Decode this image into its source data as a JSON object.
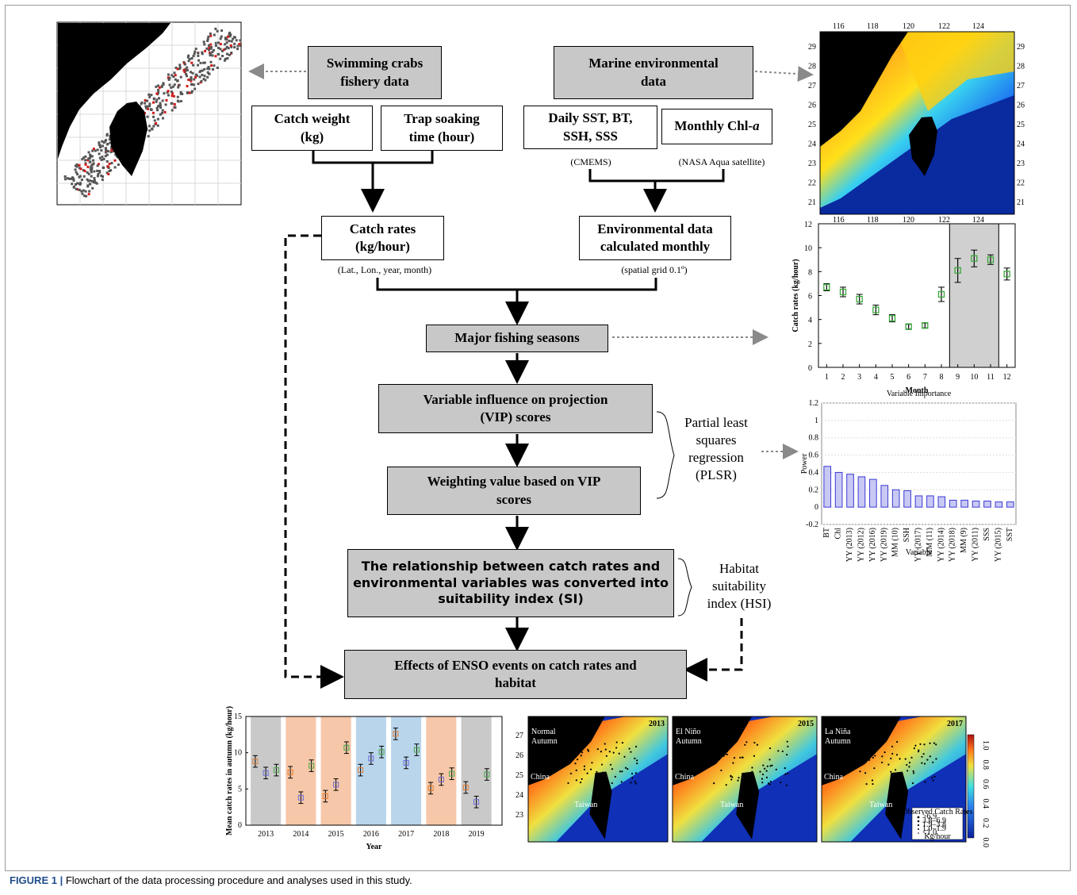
{
  "flow": {
    "fishery": "Swimming crabs\nfishery data",
    "marine": "Marine environmental\ndata",
    "catch_weight": "Catch weight\n(kg)",
    "trap_time": "Trap soaking\ntime (hour)",
    "daily": "Daily SST, BT,\nSSH, SSS",
    "monthly_chl": "Monthly Chl-",
    "monthly_chl_a": "a",
    "cmems": "(CMEMS)",
    "nasa": "(NASA Aqua satellite)",
    "catch_rates": "Catch rates\n(kg/hour)",
    "catch_rates_note": "(Lat., Lon., year, month)",
    "env_monthly": "Environmental data\ncalculated monthly",
    "env_note": "(spatial grid 0.1º)",
    "major_seasons": "Major fishing seasons",
    "vip": "Variable influence on projection\n(VIP) scores",
    "weighting": "Weighting value based on VIP\nscores",
    "plsr": "Partial least\nsquares\nregression\n(PLSR)",
    "relationship": "The relationship between catch rates and\nenvironmental variables was converted into\nsuitability index (SI)",
    "hsi": "Habitat\nsuitability\nindex (HSI)",
    "enso": "Effects of ENSO events on catch rates and\nhabitat"
  },
  "caption": {
    "label": "FIGURE 1 |",
    "text": " Flowchart of the data processing procedure and analyses used in this study."
  },
  "sst_map": {
    "top_ticks": [
      "116",
      "118",
      "120",
      "122",
      "124"
    ],
    "side_ticks": [
      "29",
      "28",
      "27",
      "26",
      "25",
      "24",
      "23",
      "22",
      "21"
    ]
  },
  "hsi_maps": [
    {
      "year": "2013",
      "label": "Normal\nAutumn"
    },
    {
      "year": "2015",
      "label": "El Niño\nAutumn"
    },
    {
      "year": "2017",
      "label": "La Niña\nAutumn"
    }
  ],
  "map_labels": {
    "china": "China",
    "taiwan": "Taiwan"
  },
  "colorbar_ticks": [
    "1.0",
    "0.8",
    "0.6",
    "0.4",
    "0.2",
    "0.0"
  ],
  "legend": {
    "title": "Observed Catch Rates",
    "items": [
      ">6.9",
      "3.8–6.9",
      "1.9–3.8",
      "1.0–1.9",
      "<1.0"
    ],
    "unit": "Kg/hour"
  },
  "colors": {
    "highlight_gray": "#d0d0d0",
    "el_nino": "#f6c7a8",
    "la_nina": "#b9d5ec",
    "normal": "#c9c9c9",
    "vip_bar": "#3b3bd6",
    "box_gray": "#c8c8c8"
  },
  "chart_data": [
    {
      "type": "scatter",
      "title": "",
      "xlabel": "Month",
      "ylabel": "Catch rates (kg/hour)",
      "x": [
        1,
        2,
        3,
        4,
        5,
        6,
        7,
        8,
        9,
        10,
        11,
        12
      ],
      "values": [
        6.7,
        6.3,
        5.7,
        4.8,
        4.1,
        3.4,
        3.5,
        6.1,
        8.1,
        9.1,
        9.0,
        7.8
      ],
      "errors": [
        0.3,
        0.4,
        0.4,
        0.4,
        0.3,
        0.2,
        0.2,
        0.6,
        1.0,
        0.7,
        0.4,
        0.5
      ],
      "xlim": [
        0.5,
        12.5
      ],
      "ylim": [
        0,
        12
      ],
      "yticks": [
        0,
        2,
        4,
        6,
        8,
        10,
        12
      ],
      "highlight_months": [
        9,
        10,
        11
      ]
    },
    {
      "type": "bar",
      "title": "Variable Importance",
      "xlabel": "Variable",
      "ylabel": "Power",
      "categories": [
        "BT",
        "Chl",
        "YY (2013)",
        "YY (2012)",
        "YY (2016)",
        "YY (2019)",
        "MM (10)",
        "SSH",
        "YY (2017)",
        "MM (11)",
        "YY (2014)",
        "YY (2018)",
        "MM (9)",
        "YY (2011)",
        "SSS",
        "YY (2015)",
        "SST"
      ],
      "values": [
        0.47,
        0.4,
        0.38,
        0.35,
        0.32,
        0.25,
        0.2,
        0.19,
        0.13,
        0.13,
        0.12,
        0.08,
        0.08,
        0.07,
        0.07,
        0.06,
        0.06
      ],
      "ylim": [
        -0.2,
        1.2
      ],
      "yticks": [
        -0.2,
        0,
        0.2,
        0.4,
        0.6,
        0.8,
        1.0,
        1.2
      ]
    },
    {
      "type": "scatter",
      "title": "",
      "xlabel": "Year",
      "ylabel": "Mean catch rates in autumn (kg/hour)",
      "categories": [
        "2013",
        "2014",
        "2015",
        "2016",
        "2017",
        "2018",
        "2019"
      ],
      "enso_phase": [
        "normal",
        "el_nino",
        "el_nino",
        "la_nina",
        "la_nina",
        "el_nino",
        "normal"
      ],
      "series": [
        {
          "name": "",
          "color": "#e07a2e",
          "values": [
            8.8,
            7.3,
            4.0,
            7.6,
            12.6,
            5.1,
            5.2
          ]
        },
        {
          "name": "",
          "color": "#6a6ad8",
          "values": [
            7.2,
            3.8,
            5.6,
            9.2,
            8.6,
            6.3,
            3.2
          ]
        },
        {
          "name": "",
          "color": "#4aa84a",
          "values": [
            7.6,
            8.2,
            10.7,
            10.1,
            10.4,
            7.1,
            7.0
          ]
        }
      ],
      "ylim": [
        0,
        15
      ],
      "yticks": [
        0,
        5,
        10,
        15
      ]
    }
  ]
}
